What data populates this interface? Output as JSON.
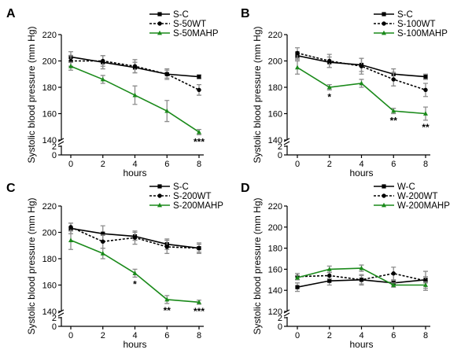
{
  "colors": {
    "ctrl": "#000000",
    "wt": "#000000",
    "mahp": "#1a8a1a",
    "err": "#8c8c8c"
  },
  "chart_data": [
    {
      "type": "line",
      "panel": "A",
      "xlabel": "hours",
      "ylabel": "Systolic blood pressure (mm Hg)",
      "x": [
        0,
        2,
        4,
        6,
        8
      ],
      "xticks": [
        "0",
        "2",
        "4",
        "6",
        "8"
      ],
      "yticks_upper": [
        "140",
        "160",
        "180",
        "200",
        "220"
      ],
      "yticks_lower": [
        "0",
        "2"
      ],
      "ylim": [
        140,
        220
      ],
      "axis_break": true,
      "series": [
        {
          "name": "S-C",
          "values": [
            203,
            199,
            195,
            190,
            188
          ],
          "err": [
            4,
            5,
            4,
            3,
            1.5
          ]
        },
        {
          "name": "S-50WT",
          "values": [
            200,
            200,
            196,
            190,
            178
          ],
          "err": [
            4,
            4,
            5,
            4,
            4
          ]
        },
        {
          "name": "S-50MAHP",
          "values": [
            196,
            186,
            174,
            162,
            146
          ],
          "err": [
            3,
            3,
            7,
            8,
            2
          ]
        }
      ],
      "annotations": [
        {
          "x": 8,
          "text": "***"
        }
      ]
    },
    {
      "type": "line",
      "panel": "B",
      "xlabel": "hours",
      "ylabel": "Systolic blood pressure (mm Hg)",
      "x": [
        0,
        2,
        4,
        6,
        8
      ],
      "xticks": [
        "0",
        "2",
        "4",
        "6",
        "8"
      ],
      "yticks_upper": [
        "140",
        "160",
        "180",
        "200",
        "220"
      ],
      "yticks_lower": [
        "0",
        "2"
      ],
      "ylim": [
        140,
        220
      ],
      "axis_break": true,
      "series": [
        {
          "name": "S-C",
          "values": [
            204,
            199,
            197,
            190,
            188
          ],
          "err": [
            3,
            4,
            5,
            4,
            2
          ]
        },
        {
          "name": "S-100WT",
          "values": [
            206,
            200,
            196,
            186,
            178
          ],
          "err": [
            4,
            5,
            6,
            5,
            5
          ]
        },
        {
          "name": "S-100MAHP",
          "values": [
            195,
            180,
            183,
            162,
            160
          ],
          "err": [
            5,
            2,
            3,
            2,
            5
          ]
        }
      ],
      "annotations": [
        {
          "x": 2,
          "text": "*"
        },
        {
          "x": 6,
          "text": "**"
        },
        {
          "x": 8,
          "text": "**"
        }
      ]
    },
    {
      "type": "line",
      "panel": "C",
      "xlabel": "hours",
      "ylabel": "Systolic blood pressure (mm Hg)",
      "x": [
        0,
        2,
        4,
        6,
        8
      ],
      "xticks": [
        "0",
        "2",
        "4",
        "6",
        "8"
      ],
      "yticks_upper": [
        "140",
        "160",
        "180",
        "200",
        "220"
      ],
      "yticks_lower": [
        "0",
        "2"
      ],
      "ylim": [
        140,
        220
      ],
      "axis_break": true,
      "series": [
        {
          "name": "S-C",
          "values": [
            203,
            199,
            197,
            191,
            188
          ],
          "err": [
            4,
            6,
            3,
            4,
            4
          ]
        },
        {
          "name": "S-200WT",
          "values": [
            204,
            193,
            196,
            189,
            188
          ],
          "err": [
            3,
            5,
            5,
            5,
            3
          ]
        },
        {
          "name": "S-200MAHP",
          "values": [
            194,
            184,
            169,
            149,
            147
          ],
          "err": [
            7,
            4,
            3,
            3,
            1.5
          ]
        }
      ],
      "annotations": [
        {
          "x": 4,
          "text": "*"
        },
        {
          "x": 6,
          "text": "**"
        },
        {
          "x": 8,
          "text": "***"
        }
      ]
    },
    {
      "type": "line",
      "panel": "D",
      "xlabel": "hours",
      "ylabel": "Systolic blood pressure (mm Hg)",
      "x": [
        0,
        2,
        4,
        6,
        8
      ],
      "xticks": [
        "0",
        "2",
        "4",
        "6",
        "8"
      ],
      "yticks_upper": [
        "120",
        "140",
        "160",
        "180",
        "200",
        "220"
      ],
      "yticks_lower": [
        "0",
        "2"
      ],
      "ylim": [
        120,
        220
      ],
      "axis_break": true,
      "series": [
        {
          "name": "W-C",
          "values": [
            143,
            149,
            150,
            147,
            150
          ],
          "err": [
            4,
            4,
            4,
            2,
            3
          ]
        },
        {
          "name": "W-200WT",
          "values": [
            153,
            154,
            150,
            156,
            149
          ],
          "err": [
            3,
            3,
            5,
            6,
            9
          ]
        },
        {
          "name": "W-200MAHP",
          "values": [
            152,
            160,
            161,
            145,
            145
          ],
          "err": [
            2,
            3,
            3,
            2,
            3
          ]
        }
      ],
      "annotations": []
    }
  ]
}
